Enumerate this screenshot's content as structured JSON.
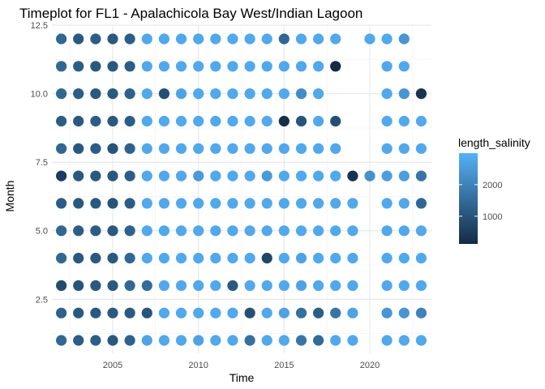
{
  "chart_data": {
    "type": "scatter",
    "title": "Timeplot for FL1 - Apalachicola Bay West/Indian Lagoon",
    "xlabel": "Time",
    "ylabel": "Month",
    "xlim": [
      2001.5,
      2023.7
    ],
    "ylim": [
      0.6,
      12.5
    ],
    "x_ticks": [
      "2005",
      "2010",
      "2015",
      "2020"
    ],
    "x_tick_values": [
      2005,
      2010,
      2015,
      2020
    ],
    "y_ticks": [
      "2.5",
      "5.0",
      "7.5",
      "10.0",
      "12.5"
    ],
    "y_tick_values": [
      2.5,
      5.0,
      7.5,
      10.0,
      12.5
    ],
    "grid": true,
    "legend": {
      "title": "length_salinity",
      "placement": "right",
      "ticks": [
        "1000",
        "2000"
      ],
      "tick_values": [
        1000,
        2000
      ],
      "range": [
        120,
        3000
      ],
      "color_low": "#132b43",
      "color_high": "#56b1f7"
    },
    "years": [
      2002,
      2003,
      2004,
      2005,
      2006,
      2007,
      2008,
      2009,
      2010,
      2011,
      2012,
      2013,
      2014,
      2015,
      2016,
      2017,
      2018,
      2019,
      2020,
      2021,
      2022,
      2023
    ],
    "months": [
      1,
      2,
      3,
      4,
      5,
      6,
      7,
      8,
      9,
      10,
      11,
      12
    ],
    "values_by_month": {
      "1": [
        1400,
        1200,
        1200,
        1100,
        1300,
        2700,
        2800,
        2800,
        2700,
        2800,
        2800,
        1600,
        2800,
        2800,
        1700,
        1500,
        2800,
        2800,
        null,
        2800,
        2800,
        2800
      ],
      "2": [
        1300,
        1100,
        1100,
        1100,
        1100,
        1000,
        2800,
        2800,
        2800,
        2800,
        2800,
        900,
        2800,
        2700,
        1600,
        1200,
        1700,
        2700,
        null,
        2400,
        2400,
        2000
      ],
      "3": [
        800,
        1000,
        1100,
        1100,
        1400,
        1500,
        2800,
        2800,
        2800,
        2800,
        1100,
        2800,
        2800,
        2800,
        2700,
        2800,
        2800,
        2800,
        null,
        2800,
        2800,
        2800
      ],
      "4": [
        1400,
        1100,
        1100,
        1100,
        1400,
        2800,
        2800,
        2800,
        2800,
        2800,
        2800,
        2800,
        700,
        2800,
        2700,
        2800,
        2800,
        2800,
        null,
        2800,
        2800,
        2800
      ],
      "5": [
        1400,
        1200,
        1200,
        1100,
        1300,
        2800,
        2800,
        2800,
        2800,
        2800,
        2800,
        2800,
        2800,
        2800,
        2800,
        2800,
        2800,
        2800,
        null,
        2800,
        2800,
        2800
      ],
      "6": [
        1200,
        1100,
        1100,
        1000,
        1200,
        2800,
        2800,
        2800,
        2800,
        2800,
        2800,
        2800,
        2800,
        2800,
        2800,
        2800,
        2800,
        2800,
        null,
        2800,
        2800,
        1400
      ],
      "7": [
        500,
        1100,
        1100,
        1100,
        1200,
        2800,
        2800,
        2800,
        2500,
        2800,
        2800,
        2800,
        2500,
        2800,
        2800,
        2800,
        2800,
        300,
        2300,
        2600,
        2600,
        1700
      ],
      "8": [
        1400,
        1100,
        1200,
        1000,
        1300,
        2800,
        2800,
        2800,
        2800,
        2800,
        2800,
        2800,
        2800,
        2800,
        2800,
        2800,
        2800,
        null,
        null,
        2800,
        2800,
        2800
      ],
      "9": [
        1200,
        1100,
        1200,
        1100,
        1200,
        2800,
        2800,
        2800,
        2800,
        2800,
        2800,
        2800,
        2800,
        200,
        1000,
        2800,
        900,
        null,
        null,
        2800,
        2800,
        2800
      ],
      "10": [
        1400,
        1200,
        1100,
        1100,
        1300,
        2800,
        900,
        2700,
        2800,
        2800,
        2800,
        2800,
        2800,
        2800,
        2200,
        2800,
        null,
        null,
        null,
        2800,
        2400,
        300
      ],
      "11": [
        1400,
        1200,
        1100,
        1100,
        1200,
        2800,
        2800,
        2800,
        2800,
        2800,
        2800,
        2800,
        2800,
        2800,
        2800,
        2800,
        100,
        null,
        null,
        2800,
        2800,
        null
      ],
      "12": [
        1400,
        1100,
        1200,
        1100,
        1200,
        2800,
        2800,
        2800,
        2800,
        2800,
        2800,
        2800,
        2800,
        1400,
        2800,
        2800,
        2800,
        null,
        2800,
        2800,
        2400,
        null
      ]
    }
  }
}
